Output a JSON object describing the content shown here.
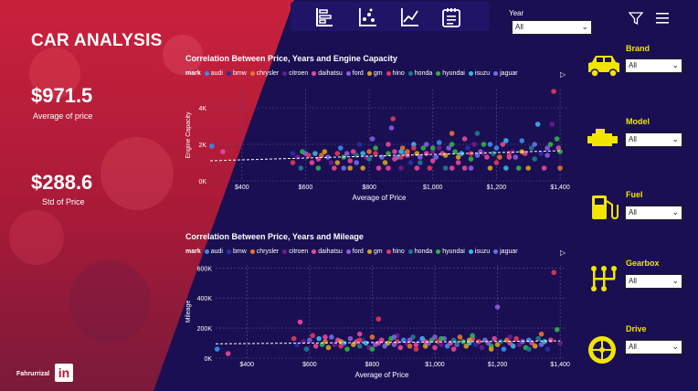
{
  "dashboard": {
    "title": "CAR ANALYSIS",
    "kpis": [
      {
        "value": "$971.5",
        "label": "Average of price"
      },
      {
        "value": "$288.6",
        "label": "Std of Price"
      }
    ],
    "author": "Fahrurrizal",
    "linkedin_label": "in"
  },
  "toolbar": {
    "icons": [
      "bar-chart-icon",
      "scatter-icon",
      "line-chart-icon",
      "notepad-icon"
    ]
  },
  "filters": {
    "year": {
      "label": "Year",
      "value": "All"
    },
    "brand": {
      "label": "Brand",
      "value": "All"
    },
    "model": {
      "label": "Model",
      "value": "All"
    },
    "fuel": {
      "label": "Fuel",
      "value": "All"
    },
    "gearbox": {
      "label": "Gearbox",
      "value": "All"
    },
    "drive": {
      "label": "Drive",
      "value": "All"
    }
  },
  "legend": {
    "title": "mark",
    "items": [
      {
        "name": "audi",
        "color": "#3b8cf0"
      },
      {
        "name": "bmw",
        "color": "#2a2fa8"
      },
      {
        "name": "chrysler",
        "color": "#e8722c"
      },
      {
        "name": "citroen",
        "color": "#6a1d8c"
      },
      {
        "name": "daihatsu",
        "color": "#e8489a"
      },
      {
        "name": "ford",
        "color": "#8a5ce0"
      },
      {
        "name": "gm",
        "color": "#d6a21c"
      },
      {
        "name": "hino",
        "color": "#e03a5a"
      },
      {
        "name": "honda",
        "color": "#1f7a8c"
      },
      {
        "name": "hyundai",
        "color": "#33b04a"
      },
      {
        "name": "isuzu",
        "color": "#38b7e6"
      },
      {
        "name": "jaguar",
        "color": "#6b6ee6"
      }
    ]
  },
  "chart_data": [
    {
      "type": "scatter",
      "title": "Correlation Between Price, Years and Engine Capacity",
      "xlabel": "Average of Price",
      "ylabel": "Engine Capacity",
      "xlim": [
        300,
        1420
      ],
      "ylim": [
        0,
        5000
      ],
      "xticks": [
        400,
        600,
        800,
        1000,
        1200,
        1400
      ],
      "xtick_labels": [
        "$400",
        "$600",
        "$800",
        "$1,000",
        "$1,200",
        "$1,400"
      ],
      "yticks": [
        0,
        2000,
        4000
      ],
      "ytick_labels": [
        "0K",
        "2K",
        "4K"
      ],
      "trend": {
        "x": [
          300,
          1400
        ],
        "y": [
          1100,
          1650
        ]
      },
      "points": [
        [
          305,
          1900,
          0
        ],
        [
          340,
          1600,
          4
        ],
        [
          560,
          1500,
          1
        ],
        [
          575,
          1300,
          3
        ],
        [
          585,
          700,
          8
        ],
        [
          600,
          1500,
          5
        ],
        [
          610,
          1400,
          7
        ],
        [
          620,
          1000,
          4
        ],
        [
          630,
          1500,
          10
        ],
        [
          640,
          700,
          9
        ],
        [
          650,
          1400,
          2
        ],
        [
          660,
          1600,
          6
        ],
        [
          670,
          1300,
          11
        ],
        [
          680,
          1000,
          3
        ],
        [
          690,
          700,
          4
        ],
        [
          700,
          1500,
          7
        ],
        [
          710,
          1800,
          0
        ],
        [
          720,
          1300,
          9
        ],
        [
          730,
          1500,
          5
        ],
        [
          740,
          700,
          6
        ],
        [
          750,
          1600,
          4
        ],
        [
          760,
          1400,
          8
        ],
        [
          770,
          2000,
          1
        ],
        [
          780,
          1500,
          10
        ],
        [
          790,
          1300,
          3
        ],
        [
          800,
          1600,
          2
        ],
        [
          810,
          2300,
          5
        ],
        [
          820,
          1500,
          7
        ],
        [
          830,
          700,
          4
        ],
        [
          840,
          1300,
          11
        ],
        [
          850,
          1000,
          6
        ],
        [
          860,
          1500,
          9
        ],
        [
          870,
          2900,
          5
        ],
        [
          875,
          3400,
          7
        ],
        [
          880,
          1600,
          4
        ],
        [
          890,
          1300,
          0
        ],
        [
          900,
          700,
          3
        ],
        [
          905,
          1800,
          2
        ],
        [
          910,
          1500,
          8
        ],
        [
          920,
          1400,
          4
        ],
        [
          930,
          1000,
          1
        ],
        [
          940,
          2000,
          10
        ],
        [
          950,
          1500,
          6
        ],
        [
          960,
          1300,
          5
        ],
        [
          970,
          1800,
          9
        ],
        [
          980,
          1500,
          4
        ],
        [
          990,
          700,
          7
        ],
        [
          1000,
          1600,
          3
        ],
        [
          1010,
          1300,
          11
        ],
        [
          1020,
          2100,
          0
        ],
        [
          1030,
          1500,
          4
        ],
        [
          1040,
          700,
          8
        ],
        [
          1050,
          1800,
          5
        ],
        [
          1060,
          2600,
          2
        ],
        [
          1070,
          1600,
          9
        ],
        [
          1080,
          1300,
          6
        ],
        [
          1090,
          1500,
          10
        ],
        [
          1100,
          700,
          4
        ],
        [
          1110,
          1800,
          1
        ],
        [
          1120,
          1500,
          7
        ],
        [
          1130,
          2000,
          3
        ],
        [
          1140,
          1400,
          11
        ],
        [
          1150,
          1600,
          5
        ],
        [
          1160,
          2000,
          9
        ],
        [
          1170,
          1300,
          4
        ],
        [
          1180,
          700,
          6
        ],
        [
          1190,
          1500,
          8
        ],
        [
          1200,
          1800,
          0
        ],
        [
          1210,
          1300,
          2
        ],
        [
          1220,
          2000,
          4
        ],
        [
          1230,
          700,
          10
        ],
        [
          1240,
          1500,
          7
        ],
        [
          1250,
          1600,
          3
        ],
        [
          1260,
          1300,
          5
        ],
        [
          1270,
          700,
          9
        ],
        [
          1280,
          2200,
          0
        ],
        [
          1290,
          1500,
          4
        ],
        [
          1300,
          700,
          6
        ],
        [
          1310,
          1800,
          8
        ],
        [
          1320,
          2000,
          11
        ],
        [
          1330,
          3100,
          10
        ],
        [
          1340,
          1500,
          1
        ],
        [
          1350,
          700,
          4
        ],
        [
          1360,
          1800,
          5
        ],
        [
          1370,
          2000,
          9
        ],
        [
          1375,
          3100,
          3
        ],
        [
          1380,
          4900,
          7
        ],
        [
          1390,
          2300,
          9
        ],
        [
          1395,
          1800,
          4
        ],
        [
          1400,
          700,
          2
        ],
        [
          820,
          1800,
          9
        ],
        [
          860,
          2000,
          4
        ],
        [
          900,
          1600,
          10
        ],
        [
          940,
          1800,
          7
        ],
        [
          980,
          2000,
          5
        ],
        [
          1020,
          1800,
          3
        ],
        [
          1060,
          2000,
          9
        ],
        [
          1100,
          2300,
          4
        ],
        [
          1140,
          2600,
          8
        ],
        [
          1180,
          2000,
          0
        ],
        [
          740,
          1100,
          4
        ],
        [
          760,
          1000,
          11
        ],
        [
          780,
          700,
          6
        ],
        [
          800,
          1200,
          8
        ],
        [
          860,
          700,
          4
        ],
        [
          900,
          1300,
          7
        ],
        [
          950,
          700,
          4
        ],
        [
          1000,
          1800,
          9
        ],
        [
          1060,
          700,
          4
        ],
        [
          1120,
          700,
          5
        ],
        [
          560,
          1000,
          7
        ],
        [
          590,
          1600,
          9
        ],
        [
          640,
          1200,
          4
        ],
        [
          700,
          1000,
          6
        ],
        [
          720,
          700,
          11
        ],
        [
          880,
          1200,
          4
        ],
        [
          920,
          1600,
          2
        ],
        [
          960,
          1000,
          8
        ],
        [
          1000,
          1100,
          4
        ],
        [
          1040,
          1400,
          6
        ],
        [
          1080,
          1000,
          4
        ],
        [
          1120,
          1200,
          9
        ],
        [
          1160,
          1500,
          3
        ],
        [
          1200,
          1000,
          7
        ],
        [
          1240,
          1300,
          4
        ],
        [
          1280,
          1600,
          6
        ],
        [
          1320,
          1200,
          8
        ],
        [
          1360,
          1400,
          5
        ],
        [
          1400,
          1600,
          9
        ],
        [
          1230,
          2200,
          10
        ]
      ]
    },
    {
      "type": "scatter",
      "title": "Correlation Between Price, Years and Mileage",
      "xlabel": "Average of Price",
      "ylabel": "Mileage",
      "xlim": [
        300,
        1420
      ],
      "ylim": [
        0,
        620000
      ],
      "xticks": [
        400,
        600,
        800,
        1000,
        1200,
        1400
      ],
      "xtick_labels": [
        "$400",
        "$600",
        "$800",
        "$1,000",
        "$1,200",
        "$1,400"
      ],
      "yticks": [
        0,
        200000,
        400000,
        600000
      ],
      "ytick_labels": [
        "0K",
        "200K",
        "400K",
        "600K"
      ],
      "trend": {
        "x": [
          300,
          1400
        ],
        "y": [
          95000,
          115000
        ]
      },
      "points": [
        [
          305,
          60000,
          0
        ],
        [
          340,
          30000,
          4
        ],
        [
          550,
          130000,
          7
        ],
        [
          560,
          90000,
          1
        ],
        [
          570,
          240000,
          4
        ],
        [
          580,
          110000,
          3
        ],
        [
          590,
          60000,
          8
        ],
        [
          600,
          120000,
          5
        ],
        [
          610,
          150000,
          7
        ],
        [
          620,
          80000,
          4
        ],
        [
          630,
          130000,
          10
        ],
        [
          640,
          90000,
          9
        ],
        [
          650,
          110000,
          2
        ],
        [
          660,
          70000,
          6
        ],
        [
          670,
          140000,
          11
        ],
        [
          680,
          90000,
          3
        ],
        [
          690,
          120000,
          4
        ],
        [
          700,
          80000,
          7
        ],
        [
          710,
          100000,
          0
        ],
        [
          720,
          60000,
          9
        ],
        [
          730,
          130000,
          5
        ],
        [
          740,
          90000,
          6
        ],
        [
          750,
          110000,
          4
        ],
        [
          760,
          80000,
          8
        ],
        [
          770,
          120000,
          1
        ],
        [
          780,
          100000,
          10
        ],
        [
          790,
          70000,
          3
        ],
        [
          800,
          140000,
          2
        ],
        [
          810,
          90000,
          5
        ],
        [
          820,
          260000,
          7
        ],
        [
          830,
          120000,
          4
        ],
        [
          840,
          80000,
          11
        ],
        [
          850,
          100000,
          6
        ],
        [
          860,
          130000,
          9
        ],
        [
          870,
          90000,
          5
        ],
        [
          880,
          110000,
          7
        ],
        [
          890,
          70000,
          4
        ],
        [
          900,
          120000,
          0
        ],
        [
          910,
          100000,
          3
        ],
        [
          920,
          80000,
          2
        ],
        [
          930,
          140000,
          8
        ],
        [
          940,
          90000,
          4
        ],
        [
          950,
          110000,
          1
        ],
        [
          960,
          130000,
          10
        ],
        [
          970,
          80000,
          6
        ],
        [
          980,
          100000,
          5
        ],
        [
          990,
          120000,
          9
        ],
        [
          1000,
          70000,
          4
        ],
        [
          1010,
          110000,
          7
        ],
        [
          1020,
          90000,
          3
        ],
        [
          1030,
          130000,
          11
        ],
        [
          1040,
          80000,
          0
        ],
        [
          1050,
          100000,
          4
        ],
        [
          1060,
          120000,
          8
        ],
        [
          1070,
          90000,
          5
        ],
        [
          1080,
          140000,
          2
        ],
        [
          1090,
          110000,
          9
        ],
        [
          1100,
          80000,
          6
        ],
        [
          1110,
          100000,
          10
        ],
        [
          1120,
          130000,
          4
        ],
        [
          1130,
          90000,
          1
        ],
        [
          1140,
          110000,
          7
        ],
        [
          1150,
          70000,
          3
        ],
        [
          1160,
          120000,
          11
        ],
        [
          1170,
          100000,
          5
        ],
        [
          1180,
          80000,
          9
        ],
        [
          1190,
          130000,
          4
        ],
        [
          1200,
          90000,
          6
        ],
        [
          1210,
          110000,
          8
        ],
        [
          1220,
          60000,
          0
        ],
        [
          1230,
          120000,
          2
        ],
        [
          1240,
          100000,
          4
        ],
        [
          1250,
          80000,
          10
        ],
        [
          1260,
          130000,
          7
        ],
        [
          1270,
          90000,
          3
        ],
        [
          1280,
          110000,
          5
        ],
        [
          1290,
          70000,
          9
        ],
        [
          1300,
          120000,
          0
        ],
        [
          1310,
          100000,
          4
        ],
        [
          1320,
          80000,
          6
        ],
        [
          1330,
          130000,
          8
        ],
        [
          1340,
          90000,
          11
        ],
        [
          1350,
          110000,
          10
        ],
        [
          1360,
          60000,
          1
        ],
        [
          1370,
          120000,
          4
        ],
        [
          1380,
          570000,
          7
        ],
        [
          1390,
          190000,
          9
        ],
        [
          1400,
          100000,
          3
        ],
        [
          1200,
          340000,
          5
        ],
        [
          1340,
          160000,
          2
        ],
        [
          760,
          160000,
          4
        ],
        [
          800,
          60000,
          9
        ],
        [
          880,
          150000,
          3
        ],
        [
          940,
          60000,
          7
        ],
        [
          1000,
          140000,
          5
        ],
        [
          1060,
          60000,
          4
        ],
        [
          1120,
          150000,
          9
        ],
        [
          1180,
          60000,
          6
        ],
        [
          1240,
          140000,
          3
        ],
        [
          1300,
          60000,
          8
        ],
        [
          650,
          140000,
          4
        ],
        [
          700,
          110000,
          6
        ],
        [
          760,
          120000,
          7
        ],
        [
          820,
          100000,
          4
        ],
        [
          870,
          140000,
          11
        ],
        [
          920,
          120000,
          5
        ],
        [
          970,
          110000,
          4
        ],
        [
          1020,
          130000,
          9
        ],
        [
          1070,
          100000,
          8
        ],
        [
          1110,
          120000,
          6
        ]
      ]
    }
  ]
}
